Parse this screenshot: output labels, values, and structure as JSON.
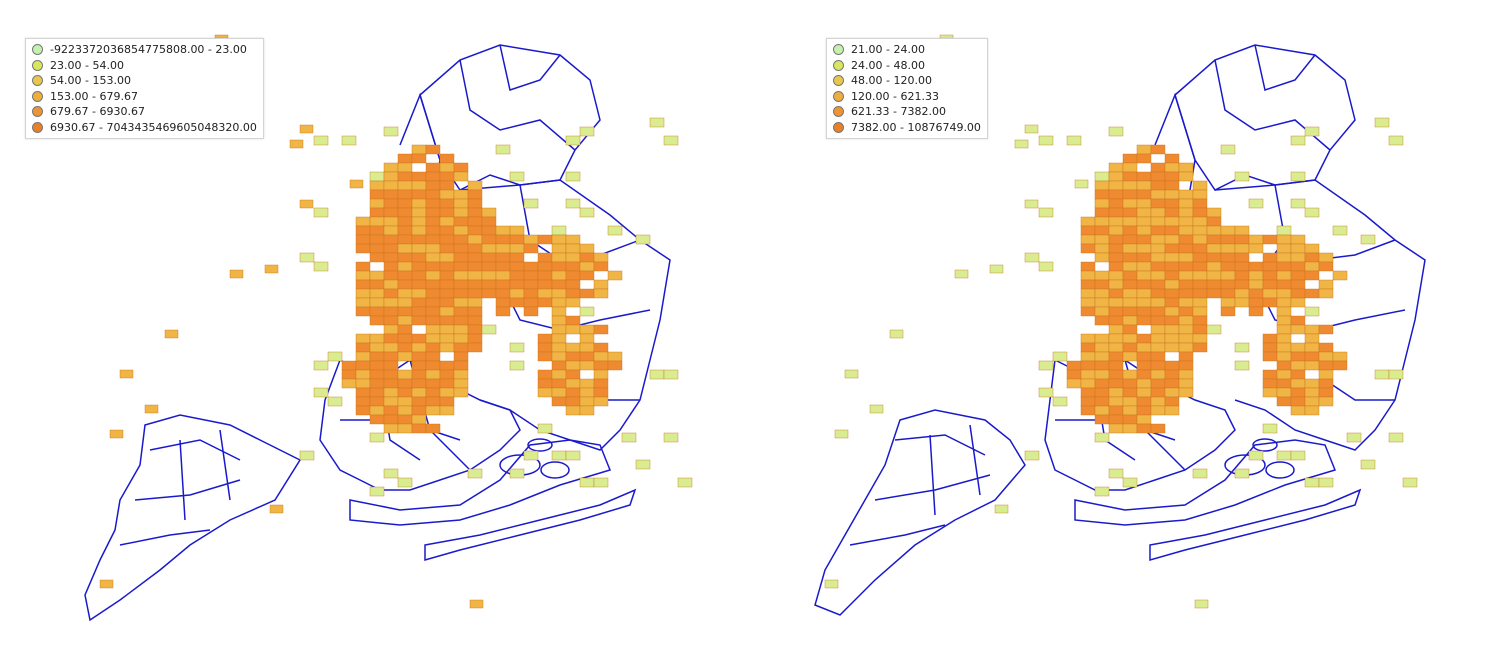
{
  "maps": [
    {
      "legend": [
        {
          "label": "-9223372036854775808.00 - 23.00",
          "color": "#c5f0b0"
        },
        {
          "label": "23.00 - 54.00",
          "color": "#d7e85c"
        },
        {
          "label": "54.00 - 153.00",
          "color": "#e8c84a"
        },
        {
          "label": "153.00 - 679.67",
          "color": "#eeae3c"
        },
        {
          "label": "679.67 - 6930.67",
          "color": "#ee9432"
        },
        {
          "label": "6930.67 - 7043435469605048320.00",
          "color": "#e8802a"
        }
      ]
    },
    {
      "legend": [
        {
          "label": "21.00 - 24.00",
          "color": "#c5f0b0"
        },
        {
          "label": "24.00 - 48.00",
          "color": "#d7e85c"
        },
        {
          "label": "48.00 - 120.00",
          "color": "#e8c84a"
        },
        {
          "label": "120.00 - 621.33",
          "color": "#eeae3c"
        },
        {
          "label": "621.33 - 7382.00",
          "color": "#ee9432"
        },
        {
          "label": "7382.00 - 10876749.00",
          "color": "#e8802a"
        }
      ]
    }
  ],
  "colors": {
    "boundary": "#1a1acc",
    "grid_fill_high": "#ef8a30",
    "grid_fill_mid": "#f0b545",
    "grid_fill_low": "#d9ec90",
    "grid_stroke": "#c7701c"
  }
}
